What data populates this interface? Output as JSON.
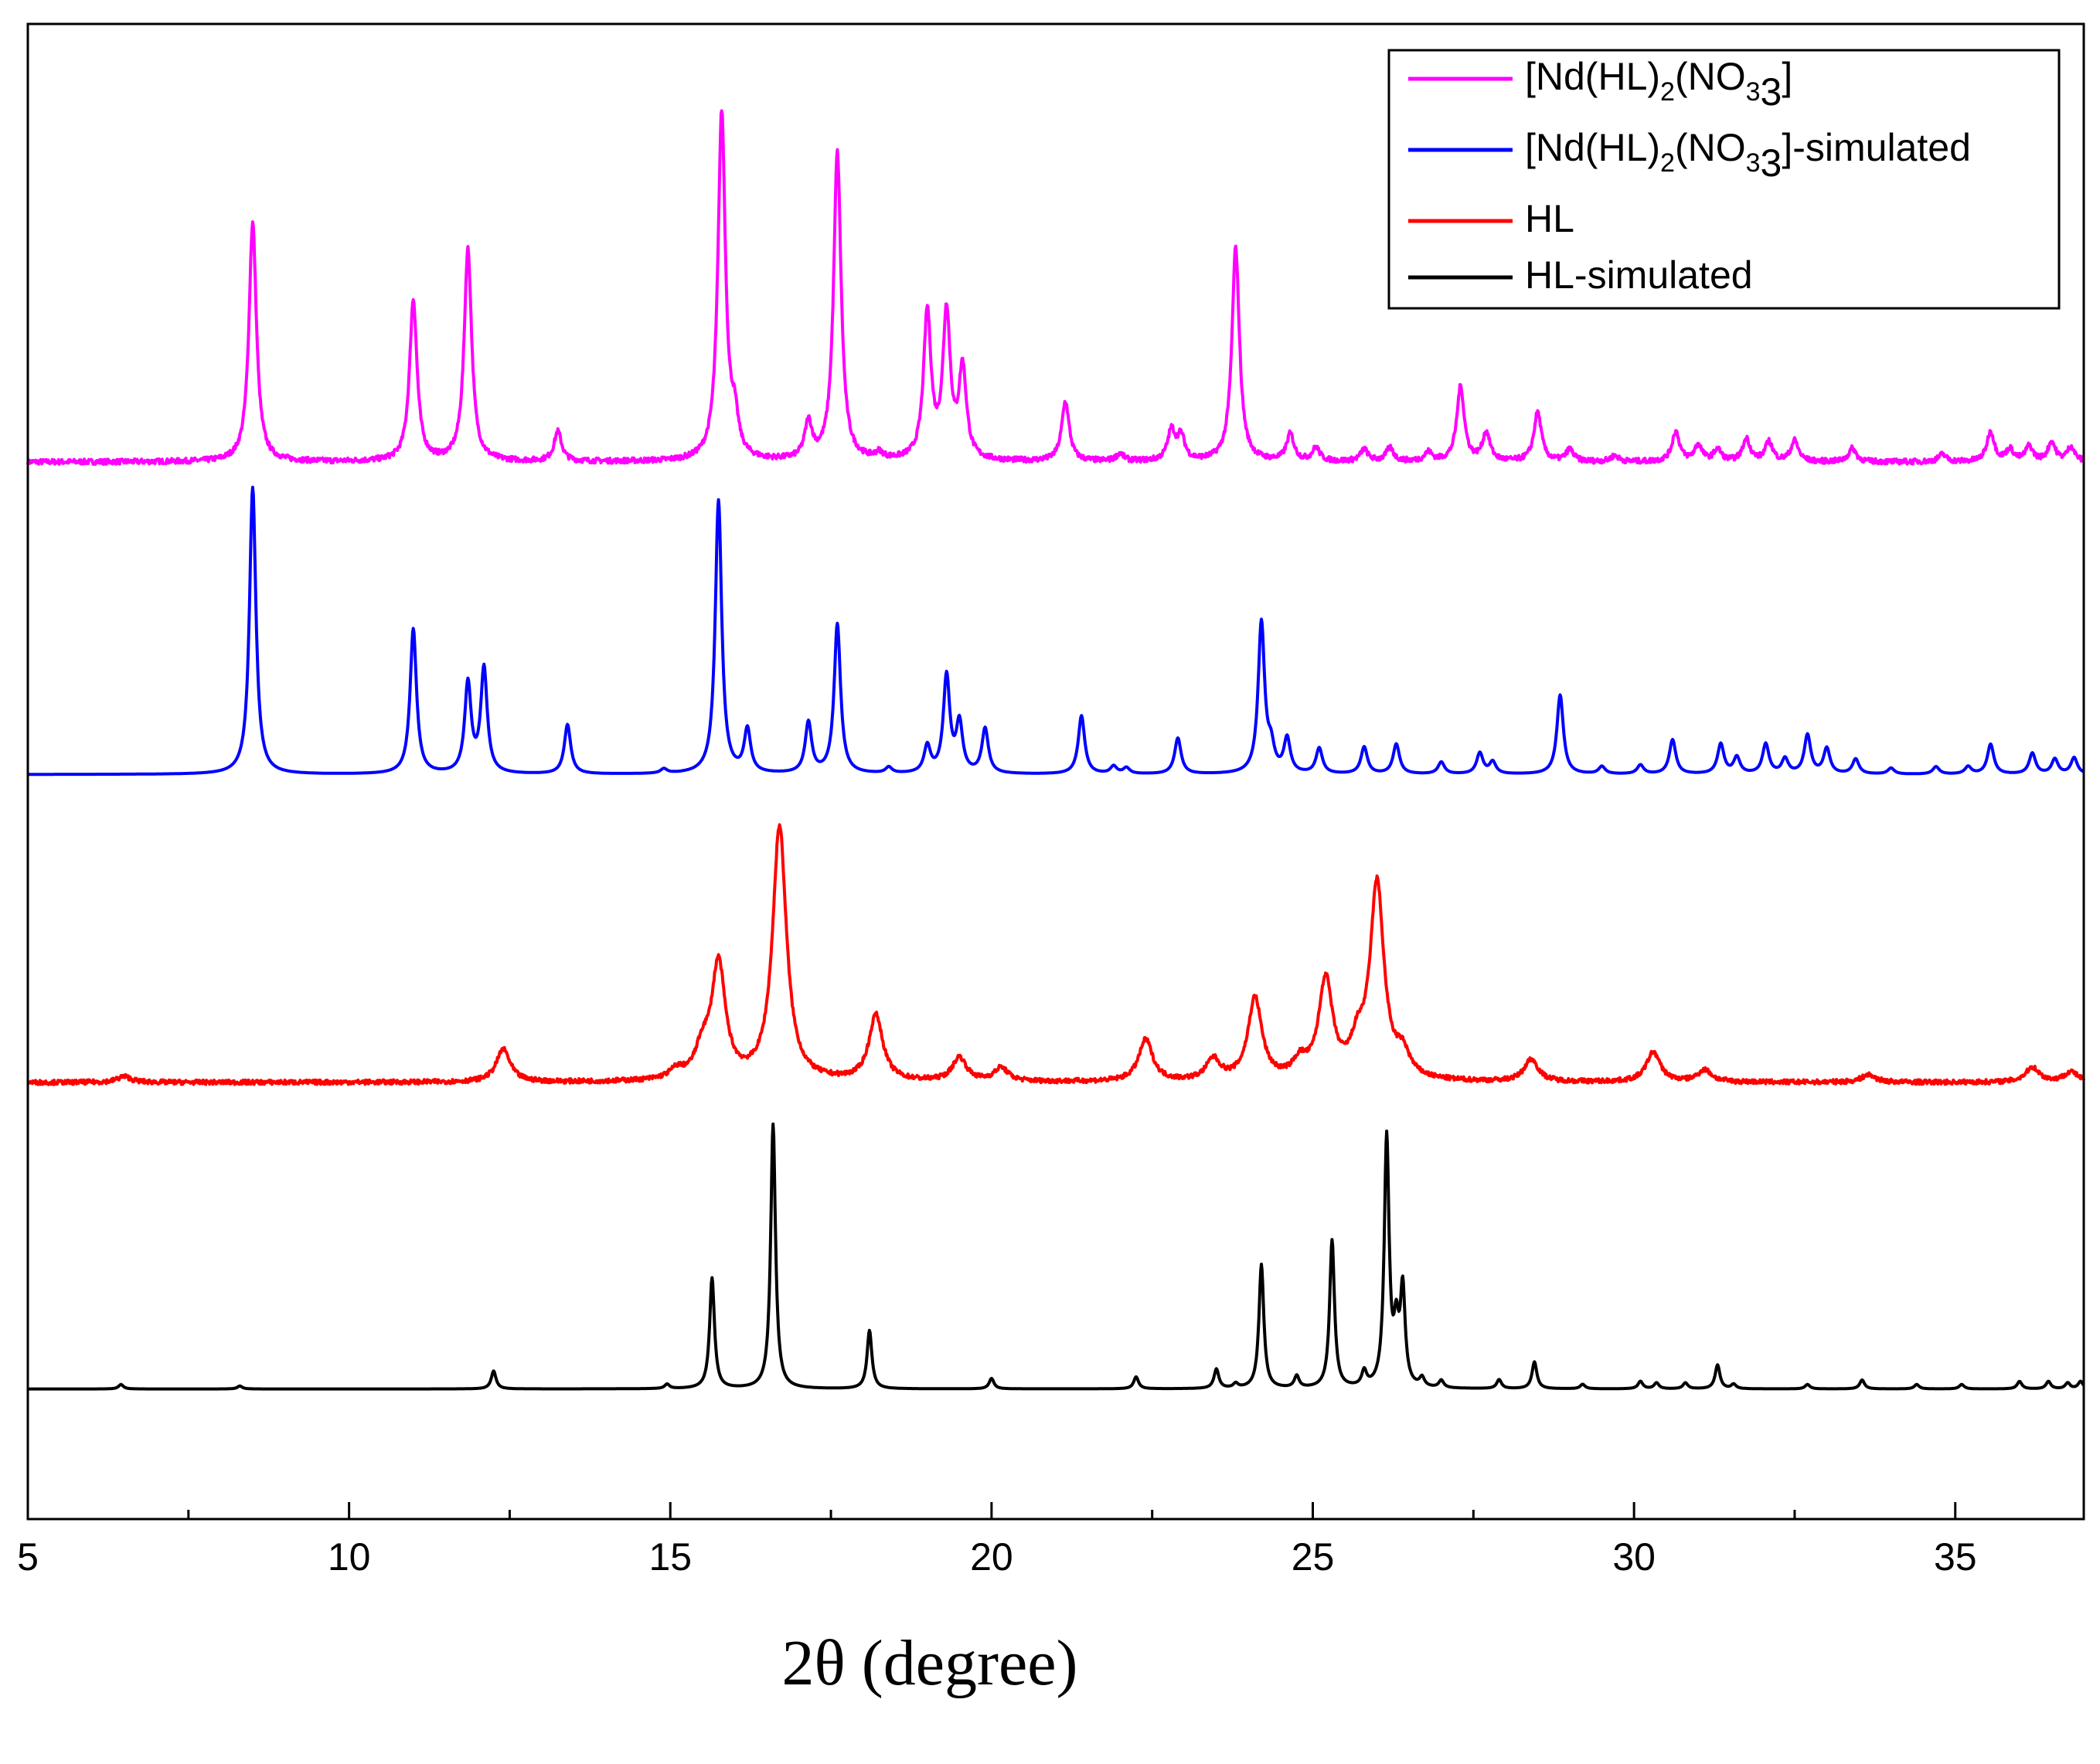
{
  "chart_data": {
    "type": "line",
    "title": "",
    "xlabel": "2θ (degree)",
    "ylabel": "",
    "xlim": [
      5,
      37
    ],
    "ylim": [
      0,
      100
    ],
    "x_ticks": [
      "5",
      "10",
      "15",
      "20",
      "25",
      "30",
      "35"
    ],
    "grid": false,
    "legend_position": "top-right",
    "series": [
      {
        "name": "[Nd(HL)2(NO3)3]",
        "legend": {
          "pre": "[Nd(HL)",
          "sub1": "2",
          "mid": "(NO",
          "sub2": "3",
          "sub3": "3",
          "post": "]"
        },
        "color": "#ff00ff",
        "baseline": 70.7,
        "linewidth": 0.07,
        "noise": 0.35,
        "peaks": [
          [
            8.5,
            16.0
          ],
          [
            11.0,
            10.8
          ],
          [
            11.85,
            14.2
          ],
          [
            13.25,
            2.0
          ],
          [
            15.8,
            23.3
          ],
          [
            16.0,
            2.3
          ],
          [
            17.15,
            2.4
          ],
          [
            17.6,
            20.6
          ],
          [
            18.25,
            0.4
          ],
          [
            19.0,
            9.8
          ],
          [
            19.3,
            9.7
          ],
          [
            19.55,
            6.0
          ],
          [
            21.15,
            4.0
          ],
          [
            22.0,
            0.5
          ],
          [
            22.8,
            2.0
          ],
          [
            22.95,
            1.6
          ],
          [
            23.8,
            14.3
          ],
          [
            24.65,
            1.8
          ],
          [
            25.05,
            0.9
          ],
          [
            25.8,
            0.8
          ],
          [
            26.2,
            0.9
          ],
          [
            26.8,
            0.6
          ],
          [
            27.3,
            5.0
          ],
          [
            27.7,
            1.9
          ],
          [
            28.5,
            3.3
          ],
          [
            29.0,
            0.8
          ],
          [
            29.7,
            0.4
          ],
          [
            30.65,
            2.0
          ],
          [
            31.0,
            1.1
          ],
          [
            31.3,
            0.8
          ],
          [
            31.75,
            1.5
          ],
          [
            32.1,
            1.3
          ],
          [
            32.5,
            1.4
          ],
          [
            33.4,
            0.9
          ],
          [
            34.8,
            0.5
          ],
          [
            35.55,
            2.0
          ],
          [
            35.85,
            0.8
          ],
          [
            36.15,
            1.0
          ],
          [
            36.5,
            1.3
          ],
          [
            36.8,
            1.0
          ]
        ]
      },
      {
        "name": "[Nd(HL)2(NO3)3]-simulated",
        "legend": {
          "pre": "[Nd(HL)",
          "sub1": "2",
          "mid": "(NO",
          "sub2": "3",
          "sub3": "3",
          "post": "]-simulated"
        },
        "color": "#0000ff",
        "baseline": 49.8,
        "linewidth": 0.06,
        "noise": 0.0,
        "peaks": [
          [
            8.5,
            19.2
          ],
          [
            11.0,
            9.7
          ],
          [
            11.85,
            6.0
          ],
          [
            12.1,
            7.0
          ],
          [
            13.4,
            3.3
          ],
          [
            14.9,
            0.3
          ],
          [
            15.75,
            18.3
          ],
          [
            16.2,
            2.9
          ],
          [
            17.15,
            3.4
          ],
          [
            17.6,
            10.0
          ],
          [
            18.4,
            0.4
          ],
          [
            19.0,
            1.8
          ],
          [
            19.3,
            6.5
          ],
          [
            19.5,
            3.3
          ],
          [
            19.9,
            3.0
          ],
          [
            21.4,
            3.9
          ],
          [
            21.9,
            0.5
          ],
          [
            22.1,
            0.4
          ],
          [
            22.9,
            2.4
          ],
          [
            24.2,
            10.1
          ],
          [
            24.35,
            1.5
          ],
          [
            24.6,
            2.3
          ],
          [
            25.1,
            1.7
          ],
          [
            25.8,
            1.8
          ],
          [
            26.3,
            2.0
          ],
          [
            27.0,
            0.8
          ],
          [
            27.6,
            1.4
          ],
          [
            27.8,
            0.8
          ],
          [
            28.85,
            5.3
          ],
          [
            29.5,
            0.5
          ],
          [
            30.1,
            0.6
          ],
          [
            30.6,
            2.3
          ],
          [
            31.35,
            2.0
          ],
          [
            31.6,
            1.1
          ],
          [
            32.05,
            2.0
          ],
          [
            32.35,
            1.0
          ],
          [
            32.7,
            2.6
          ],
          [
            33.0,
            1.7
          ],
          [
            33.45,
            1.0
          ],
          [
            34.0,
            0.4
          ],
          [
            34.7,
            0.5
          ],
          [
            35.2,
            0.5
          ],
          [
            35.55,
            2.0
          ],
          [
            36.2,
            1.4
          ],
          [
            36.55,
            1.0
          ],
          [
            36.85,
            1.1
          ]
        ]
      },
      {
        "name": "HL",
        "legend": {
          "pre": "HL"
        },
        "color": "#ff0000",
        "baseline": 29.2,
        "linewidth": 0.13,
        "noise": 0.3,
        "peaks": [
          [
            6.5,
            0.4
          ],
          [
            12.4,
            2.2
          ],
          [
            15.1,
            0.6
          ],
          [
            15.5,
            1.8
          ],
          [
            15.75,
            7.7
          ],
          [
            16.7,
            17.0
          ],
          [
            18.2,
            4.4
          ],
          [
            19.5,
            1.6
          ],
          [
            20.15,
            0.9
          ],
          [
            22.4,
            2.8
          ],
          [
            23.45,
            1.4
          ],
          [
            24.1,
            5.5
          ],
          [
            24.8,
            1.1
          ],
          [
            25.2,
            6.6
          ],
          [
            25.7,
            2.0
          ],
          [
            26.0,
            13.0
          ],
          [
            26.4,
            1.5
          ],
          [
            28.4,
            1.5
          ],
          [
            30.3,
            2.0
          ],
          [
            31.1,
            0.8
          ],
          [
            33.65,
            0.5
          ],
          [
            36.2,
            1.0
          ],
          [
            36.8,
            0.7
          ]
        ]
      },
      {
        "name": "HL-simulated",
        "legend": {
          "pre": "HL-simulated"
        },
        "color": "#000000",
        "baseline": 8.7,
        "linewidth": 0.045,
        "noise": 0.0,
        "peaks": [
          [
            6.45,
            0.3
          ],
          [
            8.3,
            0.2
          ],
          [
            12.25,
            1.2
          ],
          [
            14.95,
            0.3
          ],
          [
            15.65,
            7.4
          ],
          [
            16.6,
            17.7
          ],
          [
            18.1,
            3.9
          ],
          [
            20.0,
            0.7
          ],
          [
            22.25,
            0.8
          ],
          [
            23.5,
            1.3
          ],
          [
            23.8,
            0.3
          ],
          [
            24.2,
            8.3
          ],
          [
            24.75,
            0.8
          ],
          [
            25.3,
            9.9
          ],
          [
            25.8,
            1.0
          ],
          [
            26.15,
            16.7
          ],
          [
            26.3,
            3.5
          ],
          [
            26.4,
            6.4
          ],
          [
            26.7,
            0.6
          ],
          [
            27.0,
            0.5
          ],
          [
            27.9,
            0.6
          ],
          [
            28.45,
            1.8
          ],
          [
            29.2,
            0.3
          ],
          [
            30.1,
            0.5
          ],
          [
            30.35,
            0.4
          ],
          [
            30.8,
            0.4
          ],
          [
            31.3,
            1.6
          ],
          [
            31.55,
            0.3
          ],
          [
            32.7,
            0.3
          ],
          [
            33.55,
            0.6
          ],
          [
            34.4,
            0.3
          ],
          [
            35.1,
            0.3
          ],
          [
            36.0,
            0.5
          ],
          [
            36.45,
            0.5
          ],
          [
            36.75,
            0.4
          ],
          [
            36.95,
            0.5
          ]
        ]
      }
    ]
  }
}
